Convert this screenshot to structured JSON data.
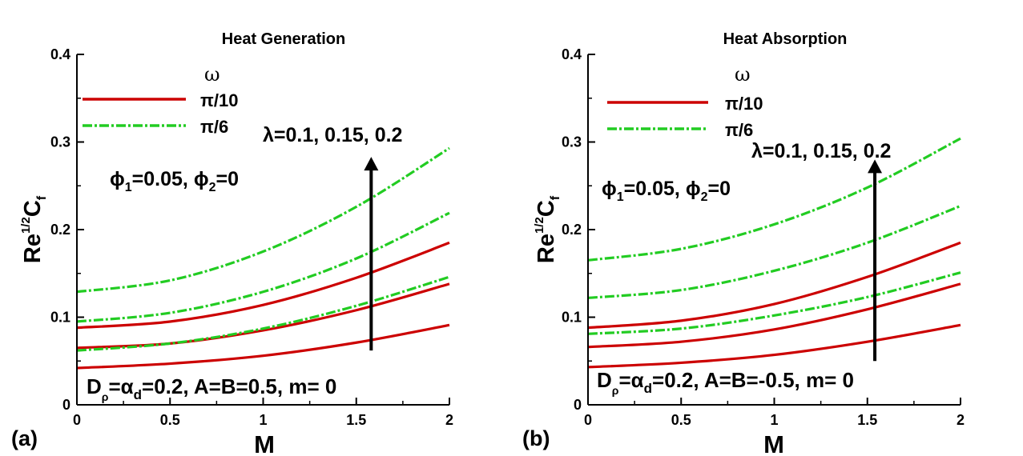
{
  "colors": {
    "solid": "#cc0000",
    "dashdot": "#22cc22",
    "axis": "#000000",
    "arrow": "#000000"
  },
  "chart_data": [
    {
      "type": "line",
      "panel_label": "(a)",
      "title": "Heat Generation",
      "xlabel": "M",
      "ylabel": {
        "base": "Re",
        "sup": "1/2",
        "main": "C",
        "sub": "f"
      },
      "xlim": [
        0,
        2
      ],
      "ylim": [
        0,
        0.4
      ],
      "xticks": [
        "0",
        "0.5",
        "1",
        "1.5",
        "2"
      ],
      "yticks": [
        "0",
        "0.1",
        "0.2",
        "0.3",
        "0.4"
      ],
      "legend": {
        "title": "ω",
        "entries": [
          {
            "label": "π/10",
            "style": "solid"
          },
          {
            "label": "π/6",
            "style": "dashdot"
          }
        ]
      },
      "annotations": {
        "lambda": "λ=0.1, 0.15, 0.2",
        "phi": {
          "p1": "ϕ",
          "s1": "1",
          "v1": "=0.05,  ",
          "p2": "ϕ",
          "s2": "2",
          "v2": "=0"
        },
        "params": {
          "d": "D",
          "dsub": "ρ",
          "a": "=α",
          "asub": "d",
          "rest": "=0.2, A=B=0.5, m= 0"
        }
      },
      "arrow": {
        "x": 1.58,
        "from": 0.062,
        "to": 0.283
      },
      "x": [
        0,
        0.5,
        1,
        1.5,
        2
      ],
      "series": [
        {
          "name": "π/10, λ=0.1",
          "style": "solid",
          "values": [
            0.042,
            0.047,
            0.056,
            0.071,
            0.091
          ]
        },
        {
          "name": "π/10, λ=0.15",
          "style": "solid",
          "values": [
            0.065,
            0.07,
            0.085,
            0.108,
            0.138
          ]
        },
        {
          "name": "π/10, λ=0.2",
          "style": "solid",
          "values": [
            0.088,
            0.095,
            0.114,
            0.145,
            0.185
          ]
        },
        {
          "name": "π/6, λ=0.1",
          "style": "dashdot",
          "values": [
            0.062,
            0.07,
            0.087,
            0.113,
            0.146
          ]
        },
        {
          "name": "π/6, λ=0.15",
          "style": "dashdot",
          "values": [
            0.095,
            0.105,
            0.129,
            0.167,
            0.219
          ]
        },
        {
          "name": "π/6, λ=0.2",
          "style": "dashdot",
          "values": [
            0.129,
            0.142,
            0.175,
            0.226,
            0.293
          ]
        }
      ]
    },
    {
      "type": "line",
      "panel_label": "(b)",
      "title": "Heat Absorption",
      "xlabel": "M",
      "ylabel": {
        "base": "Re",
        "sup": "1/2",
        "main": "C",
        "sub": "f"
      },
      "xlim": [
        0,
        2
      ],
      "ylim": [
        0,
        0.4
      ],
      "xticks": [
        "0",
        "0.5",
        "1",
        "1.5",
        "2"
      ],
      "yticks": [
        "0",
        "0.1",
        "0.2",
        "0.3",
        "0.4"
      ],
      "legend": {
        "title": "ω",
        "entries": [
          {
            "label": "π/10",
            "style": "solid"
          },
          {
            "label": "π/6",
            "style": "dashdot"
          }
        ]
      },
      "annotations": {
        "lambda": "λ=0.1, 0.15, 0.2",
        "phi": {
          "p1": "ϕ",
          "s1": "1",
          "v1": "=0.05,  ",
          "p2": "ϕ",
          "s2": "2",
          "v2": "=0"
        },
        "params": {
          "d": "D",
          "dsub": "ρ",
          "a": "=α",
          "asub": "d",
          "rest": "=0.2, A=B=-0.5, m= 0"
        }
      },
      "arrow": {
        "x": 1.54,
        "from": 0.05,
        "to": 0.28
      },
      "x": [
        0,
        0.5,
        1,
        1.5,
        2
      ],
      "series": [
        {
          "name": "π/10, λ=0.1",
          "style": "solid",
          "values": [
            0.043,
            0.048,
            0.057,
            0.072,
            0.091
          ]
        },
        {
          "name": "π/10, λ=0.15",
          "style": "solid",
          "values": [
            0.066,
            0.072,
            0.086,
            0.109,
            0.138
          ]
        },
        {
          "name": "π/10, λ=0.2",
          "style": "solid",
          "values": [
            0.088,
            0.096,
            0.115,
            0.146,
            0.185
          ]
        },
        {
          "name": "π/6, λ=0.1",
          "style": "dashdot",
          "values": [
            0.081,
            0.087,
            0.102,
            0.123,
            0.151
          ]
        },
        {
          "name": "π/6, λ=0.15",
          "style": "dashdot",
          "values": [
            0.122,
            0.131,
            0.153,
            0.185,
            0.227
          ]
        },
        {
          "name": "π/6, λ=0.2",
          "style": "dashdot",
          "values": [
            0.165,
            0.178,
            0.206,
            0.248,
            0.304
          ]
        }
      ]
    }
  ]
}
